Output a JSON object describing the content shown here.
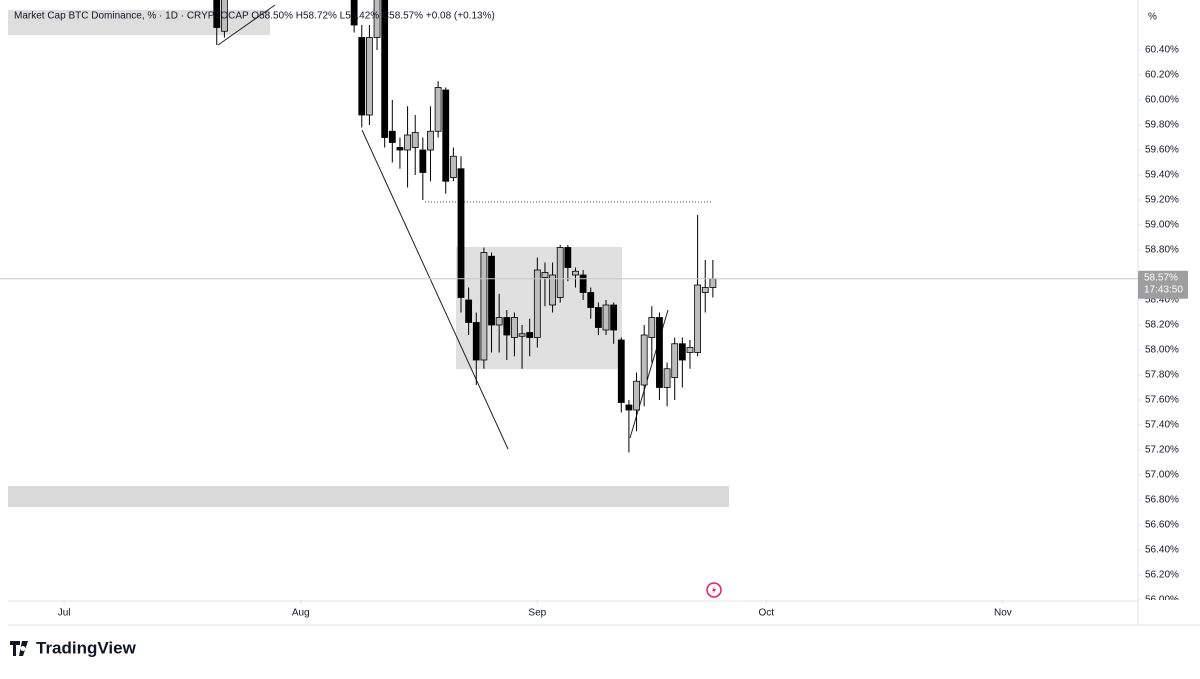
{
  "chart_data": {
    "type": "candlestick",
    "title": "Market Cap BTC Dominance, % · 1D · CRYPTOCAP  O58.50%  H58.72%  L58.42%  C58.57%  +0.08 (+0.13%)",
    "y_unit": "%",
    "last_price_label": "58.57%",
    "countdown": "17:43:50",
    "brand": "TradingView",
    "x": [
      20,
      21,
      38,
      39,
      40,
      41,
      42,
      43,
      44,
      45,
      46,
      47,
      48,
      49,
      50,
      51,
      52,
      53,
      54,
      55,
      56,
      57,
      58,
      59,
      60,
      61,
      62,
      63,
      64,
      65,
      66,
      67,
      68,
      69,
      70,
      71,
      72,
      73,
      74,
      75,
      76,
      77,
      78,
      79,
      80,
      81,
      82,
      83,
      84,
      85
    ],
    "open": [
      60.9,
      60.55,
      60.9,
      60.5,
      59.88,
      60.5,
      60.85,
      59.75,
      59.62,
      59.6,
      59.62,
      59.6,
      59.6,
      59.75,
      60.08,
      59.38,
      59.45,
      58.4,
      58.22,
      57.92,
      58.75,
      58.2,
      58.26,
      58.1,
      58.11,
      58.14,
      58.1,
      58.58,
      58.36,
      58.42,
      58.82,
      58.6,
      58.6,
      58.46,
      58.34,
      58.16,
      58.36,
      58.08,
      57.56,
      57.52,
      57.72,
      58.1,
      58.26,
      57.7,
      57.78,
      58.05,
      57.98,
      57.98,
      58.46,
      58.5
    ],
    "high": [
      61.0,
      61.0,
      61.0,
      60.6,
      60.6,
      61.0,
      61.0,
      60.0,
      59.7,
      59.95,
      59.88,
      59.7,
      59.95,
      60.15,
      60.1,
      59.62,
      59.55,
      58.5,
      58.3,
      58.82,
      58.78,
      58.45,
      58.32,
      58.3,
      58.2,
      58.25,
      58.74,
      58.7,
      58.7,
      58.84,
      58.84,
      58.66,
      58.64,
      58.5,
      58.38,
      58.4,
      58.38,
      58.1,
      57.6,
      57.82,
      58.2,
      58.35,
      58.3,
      57.9,
      58.1,
      58.1,
      58.08,
      59.08,
      58.72,
      58.72
    ],
    "low": [
      60.44,
      60.5,
      60.54,
      59.78,
      59.8,
      60.4,
      59.62,
      59.5,
      59.45,
      59.3,
      59.4,
      59.2,
      59.35,
      59.7,
      59.25,
      59.35,
      58.3,
      58.12,
      57.72,
      57.85,
      57.98,
      57.98,
      57.92,
      57.95,
      57.85,
      57.95,
      58.02,
      58.35,
      58.3,
      58.38,
      58.55,
      58.5,
      58.4,
      58.25,
      58.12,
      58.12,
      58.05,
      57.5,
      57.18,
      57.35,
      57.55,
      57.9,
      57.6,
      57.55,
      57.6,
      57.7,
      57.85,
      57.95,
      58.3,
      58.42
    ],
    "close": [
      60.58,
      60.9,
      60.6,
      59.88,
      60.5,
      60.85,
      59.7,
      59.66,
      59.6,
      59.72,
      59.74,
      59.42,
      59.75,
      60.1,
      59.35,
      59.55,
      58.42,
      58.22,
      57.92,
      58.78,
      58.2,
      58.26,
      58.12,
      58.26,
      58.13,
      58.1,
      58.64,
      58.62,
      58.6,
      58.82,
      58.66,
      58.63,
      58.46,
      58.34,
      58.18,
      58.36,
      58.16,
      57.58,
      57.52,
      57.75,
      58.12,
      58.26,
      57.7,
      57.85,
      58.05,
      57.92,
      58.02,
      58.52,
      58.5,
      58.57
    ],
    "colors": {
      "up": "#bdbdbd",
      "down": "#000000",
      "wick": "#000000",
      "price_line": "#c8c8c8",
      "price_box": "#9e9e9e"
    },
    "xlim": [
      -8.4,
      140.7
    ],
    "xticks": [
      {
        "value": 0,
        "label": "Jul"
      },
      {
        "value": 31,
        "label": "Aug"
      },
      {
        "value": 62,
        "label": "Sep"
      },
      {
        "value": 92,
        "label": "Oct"
      },
      {
        "value": 123,
        "label": "Nov"
      }
    ],
    "ylim": [
      56.0,
      60.8
    ],
    "yticks": [
      {
        "value": 56.0,
        "label": "56.00%"
      },
      {
        "value": 56.2,
        "label": "56.20%"
      },
      {
        "value": 56.4,
        "label": "56.40%"
      },
      {
        "value": 56.6,
        "label": "56.60%"
      },
      {
        "value": 56.8,
        "label": "56.80%"
      },
      {
        "value": 57.0,
        "label": "57.00%"
      },
      {
        "value": 57.2,
        "label": "57.20%"
      },
      {
        "value": 57.4,
        "label": "57.40%"
      },
      {
        "value": 57.6,
        "label": "57.60%"
      },
      {
        "value": 57.8,
        "label": "57.80%"
      },
      {
        "value": 58.0,
        "label": "58.00%"
      },
      {
        "value": 58.2,
        "label": "58.20%"
      },
      {
        "value": 58.4,
        "label": "58.40%"
      },
      {
        "value": 58.8,
        "label": "58.80%"
      },
      {
        "value": 59.0,
        "label": "59.00%"
      },
      {
        "value": 59.2,
        "label": "59.20%"
      },
      {
        "value": 59.4,
        "label": "59.40%"
      },
      {
        "value": 59.6,
        "label": "59.60%"
      },
      {
        "value": 59.8,
        "label": "59.80%"
      },
      {
        "value": 60.0,
        "label": "60.00%"
      },
      {
        "value": 60.2,
        "label": "60.20%"
      },
      {
        "value": 60.4,
        "label": "60.40%"
      }
    ],
    "grid": false
  }
}
